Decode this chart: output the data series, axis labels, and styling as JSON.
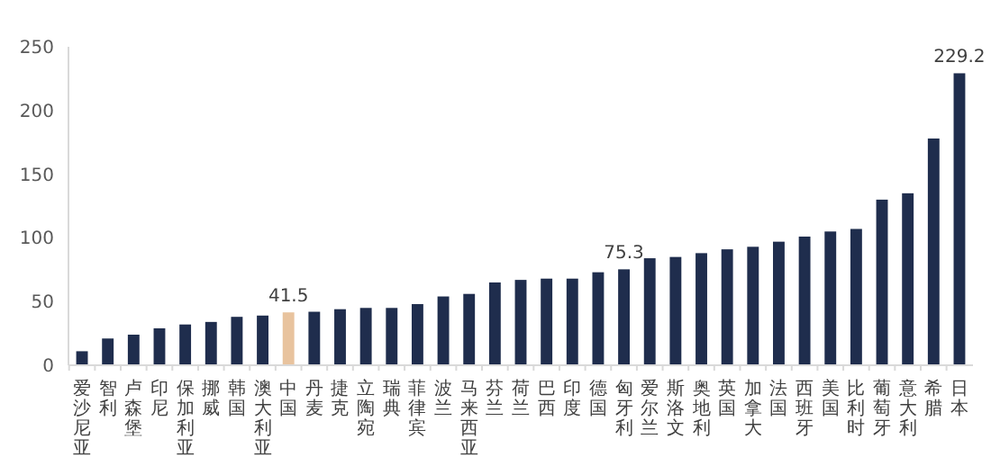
{
  "chart_data": {
    "type": "bar",
    "categories": [
      "爱沙尼亚",
      "智利",
      "卢森堡",
      "印尼",
      "保加利亚",
      "挪威",
      "韩国",
      "澳大利亚",
      "中国",
      "丹麦",
      "捷克",
      "立陶宛",
      "瑞典",
      "菲律宾",
      "波兰",
      "马来西亚",
      "芬兰",
      "荷兰",
      "巴西",
      "印度",
      "德国",
      "匈牙利",
      "爱尔兰",
      "斯洛文",
      "奥地利",
      "英国",
      "加拿大",
      "法国",
      "西班牙",
      "美国",
      "比利时",
      "葡萄牙",
      "意大利",
      "希腊",
      "日本"
    ],
    "values": [
      11,
      21,
      24,
      29,
      32,
      34,
      38,
      39,
      41.5,
      42,
      44,
      45,
      45,
      48,
      54,
      56,
      65,
      67,
      68,
      68,
      73,
      75.3,
      84,
      85,
      88,
      91,
      93,
      97,
      101,
      105,
      107,
      130,
      135,
      178,
      229.2
    ],
    "colors": [
      "#1f2d4d",
      "#1f2d4d",
      "#1f2d4d",
      "#1f2d4d",
      "#1f2d4d",
      "#1f2d4d",
      "#1f2d4d",
      "#1f2d4d",
      "#e8c39e",
      "#1f2d4d",
      "#1f2d4d",
      "#1f2d4d",
      "#1f2d4d",
      "#1f2d4d",
      "#1f2d4d",
      "#1f2d4d",
      "#1f2d4d",
      "#1f2d4d",
      "#1f2d4d",
      "#1f2d4d",
      "#1f2d4d",
      "#1f2d4d",
      "#1f2d4d",
      "#1f2d4d",
      "#1f2d4d",
      "#1f2d4d",
      "#1f2d4d",
      "#1f2d4d",
      "#1f2d4d",
      "#1f2d4d",
      "#1f2d4d",
      "#1f2d4d",
      "#1f2d4d",
      "#1f2d4d",
      "#1f2d4d"
    ],
    "value_labels": [
      null,
      null,
      null,
      null,
      null,
      null,
      null,
      null,
      "41.5",
      null,
      null,
      null,
      null,
      null,
      null,
      null,
      null,
      null,
      null,
      null,
      null,
      "75.3",
      null,
      null,
      null,
      null,
      null,
      null,
      null,
      null,
      null,
      null,
      null,
      null,
      "229.2"
    ],
    "ylim": [
      0,
      250
    ],
    "yticks": [
      0,
      50,
      100,
      150,
      200,
      250
    ]
  }
}
